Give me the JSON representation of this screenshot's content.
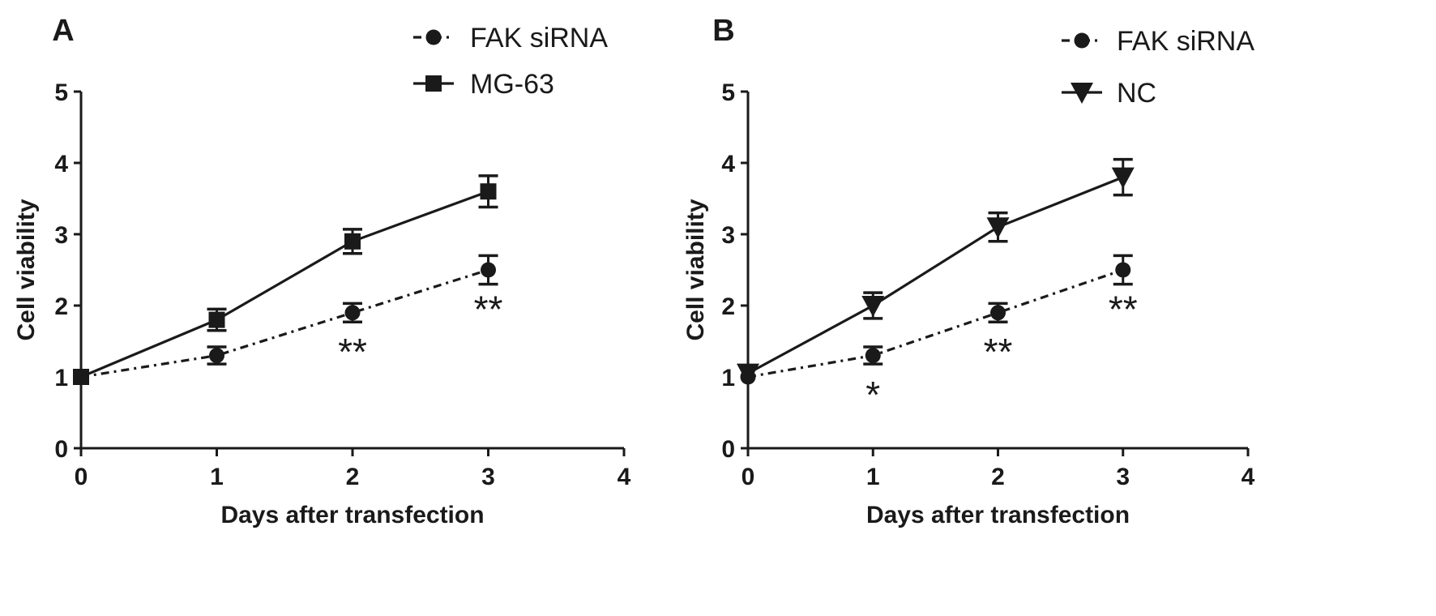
{
  "chart_data": [
    {
      "type": "line",
      "panel_label": "A",
      "xlabel": "Days after transfection",
      "ylabel": "Cell viability",
      "xlim": [
        0,
        4
      ],
      "ylim": [
        0,
        5
      ],
      "x_ticks": [
        "0",
        "1",
        "2",
        "3",
        "4"
      ],
      "y_ticks": [
        "0",
        "1",
        "2",
        "3",
        "4",
        "5"
      ],
      "grid": false,
      "legend_position": "top-right",
      "series": [
        {
          "name": "FAK siRNA",
          "style": "dashdot",
          "marker": "circle",
          "x": [
            0,
            1,
            2,
            3
          ],
          "y": [
            1.0,
            1.3,
            1.9,
            2.5
          ],
          "err": [
            0.02,
            0.12,
            0.13,
            0.2
          ]
        },
        {
          "name": "MG-63",
          "style": "solid",
          "marker": "square",
          "x": [
            0,
            1,
            2,
            3
          ],
          "y": [
            1.0,
            1.8,
            2.9,
            3.6
          ],
          "err": [
            0.02,
            0.15,
            0.17,
            0.22
          ]
        }
      ],
      "annotations": [
        {
          "x": 2,
          "text": "**",
          "anchor_y": 1.35
        },
        {
          "x": 3,
          "text": "**",
          "anchor_y": 1.95
        }
      ]
    },
    {
      "type": "line",
      "panel_label": "B",
      "xlabel": "Days after transfection",
      "ylabel": "Cell viability",
      "xlim": [
        0,
        4
      ],
      "ylim": [
        0,
        5
      ],
      "x_ticks": [
        "0",
        "1",
        "2",
        "3",
        "4"
      ],
      "y_ticks": [
        "0",
        "1",
        "2",
        "3",
        "4",
        "5"
      ],
      "grid": false,
      "legend_position": "top-right",
      "series": [
        {
          "name": "FAK siRNA",
          "style": "dashdot",
          "marker": "circle",
          "x": [
            0,
            1,
            2,
            3
          ],
          "y": [
            1.0,
            1.3,
            1.9,
            2.5
          ],
          "err": [
            0.02,
            0.12,
            0.13,
            0.2
          ]
        },
        {
          "name": "NC",
          "style": "solid",
          "marker": "triangle-down",
          "x": [
            0,
            1,
            2,
            3
          ],
          "y": [
            1.05,
            2.0,
            3.1,
            3.8
          ],
          "err": [
            0.02,
            0.18,
            0.2,
            0.25
          ]
        }
      ],
      "annotations": [
        {
          "x": 1,
          "text": "*",
          "anchor_y": 0.75
        },
        {
          "x": 2,
          "text": "**",
          "anchor_y": 1.35
        },
        {
          "x": 3,
          "text": "**",
          "anchor_y": 1.95
        }
      ]
    }
  ]
}
